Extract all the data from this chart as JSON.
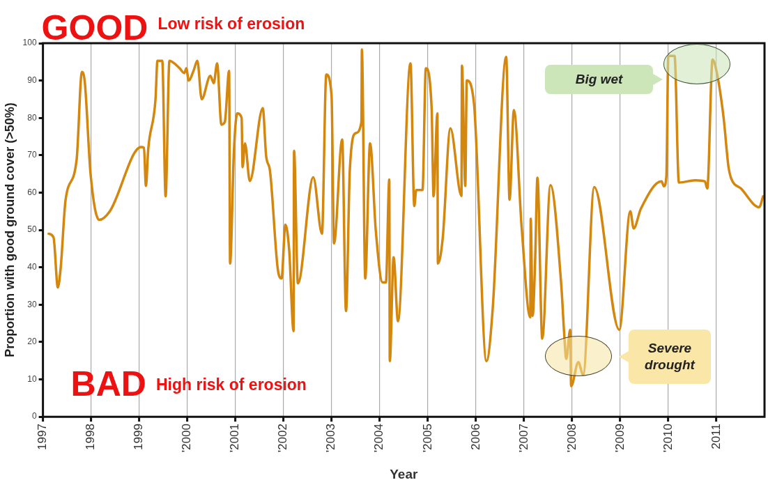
{
  "chart_data": {
    "type": "line",
    "xlabel": "Year",
    "ylabel": "Proportion with good ground cover (>50%)",
    "x": [
      1997.12,
      1997.22,
      1997.31,
      1997.37,
      1997.47,
      1997.7,
      1997.81,
      1997.87,
      1997.99,
      1998.17,
      1998.39,
      1999.04,
      1999.1,
      1999.14,
      1999.19,
      1999.34,
      1999.38,
      1999.48,
      1999.55,
      1999.63,
      1999.84,
      1999.94,
      1999.98,
      2000.03,
      2000.13,
      2000.21,
      2000.3,
      2000.48,
      2000.55,
      2000.62,
      2000.71,
      2000.78,
      2000.87,
      2000.89,
      2000.97,
      2001.04,
      2001.13,
      2001.15,
      2001.2,
      2001.3,
      2001.57,
      2001.64,
      2001.72,
      2001.88,
      2001.96,
      2002.04,
      2002.12,
      2002.21,
      2002.22,
      2002.3,
      2002.62,
      2002.8,
      2002.89,
      2003.0,
      2003.05,
      2003.22,
      2003.3,
      2003.38,
      2003.5,
      2003.62,
      2003.63,
      2003.7,
      2003.8,
      2003.92,
      2004.06,
      2004.13,
      2004.2,
      2004.21,
      2004.29,
      2004.38,
      2004.64,
      2004.72,
      2004.76,
      2004.89,
      2004.96,
      2005.08,
      2005.12,
      2005.2,
      2005.21,
      2005.31,
      2005.47,
      2005.7,
      2005.71,
      2005.78,
      2005.81,
      2005.96,
      2006.22,
      2006.35,
      2006.63,
      2006.7,
      2006.79,
      2006.95,
      2007.13,
      2007.14,
      2007.18,
      2007.23,
      2007.28,
      2007.38,
      2007.55,
      2007.78,
      2007.83,
      2007.88,
      2007.96,
      2007.98,
      2008.13,
      2008.23,
      2008.46,
      2008.98,
      2009.21,
      2009.28,
      2009.43,
      2009.86,
      2009.91,
      2009.96,
      2010.0,
      2010.13,
      2010.22,
      2010.56,
      2010.76,
      2010.81,
      2010.92,
      2011.01,
      2011.15,
      2011.25,
      2011.31,
      2011.51,
      2011.89,
      2011.97
    ],
    "series": [
      {
        "color": "#d4870f",
        "values": [
          49,
          48,
          34.6,
          40,
          58,
          68.8,
          92.3,
          89.6,
          65,
          52.7,
          55,
          72.2,
          72,
          61.8,
          71.8,
          85,
          95.3,
          95.3,
          59,
          95.3,
          93.3,
          92,
          93.3,
          90,
          92.6,
          95.3,
          85,
          91.3,
          89.3,
          94.6,
          78.2,
          78.9,
          92.6,
          41,
          71.2,
          81.2,
          80,
          66.8,
          73.2,
          63.1,
          82.6,
          69.8,
          65.8,
          39.7,
          37,
          51.4,
          44.4,
          22.9,
          71.2,
          35.7,
          64.1,
          49,
          91.6,
          85.9,
          46.4,
          74.2,
          28.3,
          66.2,
          75.9,
          78.9,
          98.3,
          37,
          73.2,
          49.7,
          36,
          36,
          63.5,
          14.9,
          42.7,
          25.6,
          94.6,
          56.4,
          60.7,
          60.7,
          93.3,
          82.6,
          59,
          81.2,
          41,
          47.7,
          77.2,
          59.1,
          94,
          61.8,
          90,
          83.9,
          14.9,
          29,
          96.3,
          58.1,
          82.1,
          51,
          26.6,
          53,
          27,
          41,
          64,
          20.9,
          62,
          34.3,
          23.3,
          15.5,
          23.3,
          8.2,
          14.6,
          11.2,
          61.5,
          23.3,
          55,
          50.4,
          55.7,
          63,
          61.7,
          64.4,
          96.6,
          96.6,
          62.7,
          63.3,
          63,
          61.1,
          95.6,
          92,
          80,
          67,
          63.7,
          61.1,
          56.1,
          59
        ]
      }
    ],
    "xlim": [
      1997,
      2012
    ],
    "ylim": [
      0,
      100
    ],
    "xticks": [
      1997,
      1998,
      1999,
      {
        "value": 2000,
        "label": "'2000"
      },
      {
        "value": 2001,
        "label": "'2001"
      },
      {
        "value": 2002,
        "label": "'2002"
      },
      {
        "value": 2003,
        "label": "'2003"
      },
      {
        "value": 2004,
        "label": "'2004"
      },
      {
        "value": 2005,
        "label": "'2005"
      },
      2006,
      {
        "value": 2007,
        "label": "'2007"
      },
      {
        "value": 2008,
        "label": "'2008"
      },
      {
        "value": 2009,
        "label": "'2009"
      },
      {
        "value": 2010,
        "label": "'2010"
      },
      2011
    ],
    "yticks": [
      0,
      10,
      20,
      30,
      40,
      50,
      60,
      70,
      80,
      90,
      100
    ],
    "grid": "x",
    "legend": false,
    "marker": "none",
    "line_style": "solid",
    "annotations": [
      "GOOD",
      "Low risk of erosion",
      "BAD",
      "High risk of erosion",
      "Big wet",
      "Severe drought"
    ]
  }
}
